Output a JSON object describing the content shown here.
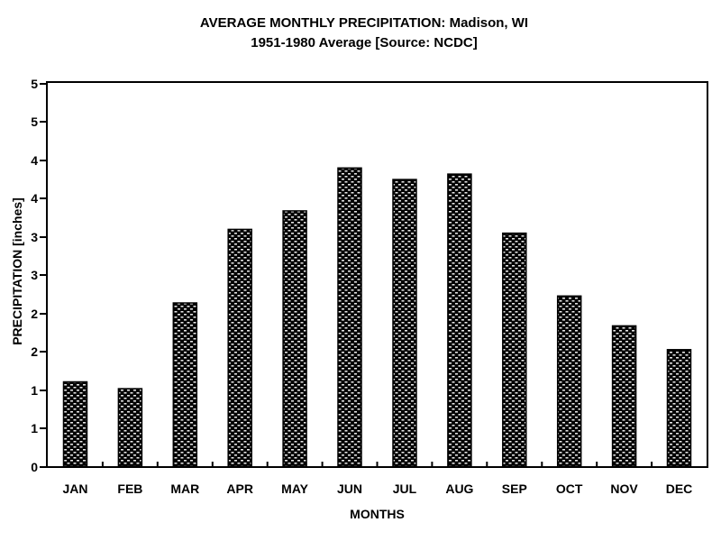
{
  "title": {
    "line1": "AVERAGE MONTHLY PRECIPITATION: Madison, WI",
    "line2": "1951-1980 Average [Source: NCDC]"
  },
  "axes": {
    "y_label": "PRECIPITATION [inches]",
    "x_label": "MONTHS",
    "y_tick_values_bottom_to_top": [
      0,
      0.5,
      1,
      1.5,
      2,
      2.5,
      3,
      3.5,
      4,
      4.5,
      5
    ],
    "y_tick_labels_bottom_to_top": [
      "0",
      "1",
      "1",
      "2",
      "2",
      "3",
      "3",
      "4",
      "4",
      "5",
      "5"
    ]
  },
  "chart_data": {
    "type": "bar",
    "title": "AVERAGE MONTHLY PRECIPITATION: Madison, WI — 1951-1980 Average [Source: NCDC]",
    "categories": [
      "JAN",
      "FEB",
      "MAR",
      "APR",
      "MAY",
      "JUN",
      "JUL",
      "AUG",
      "SEP",
      "OCT",
      "NOV",
      "DEC"
    ],
    "values": [
      1.1,
      1.01,
      2.13,
      3.09,
      3.33,
      3.89,
      3.74,
      3.81,
      3.04,
      2.22,
      1.83,
      1.52
    ],
    "xlabel": "MONTHS",
    "ylabel": "PRECIPITATION [inches]",
    "ylim": [
      0,
      5
    ],
    "y_tick_interval": 0.5,
    "grid": false,
    "legend": "none",
    "bar_style": "black stipple (dotted) pattern with solid outline",
    "frame": "full box around plot area"
  },
  "colors": {
    "foreground": "#000000",
    "background": "#ffffff"
  }
}
